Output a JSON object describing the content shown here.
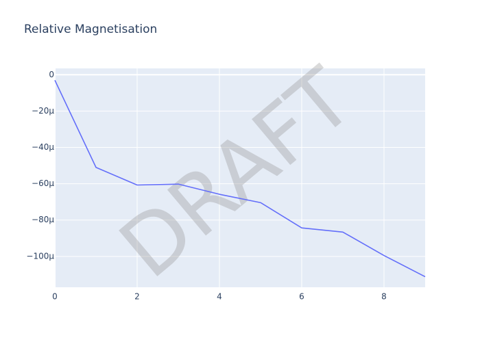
{
  "chart_data": {
    "type": "line",
    "title": "Relative Magnetisation",
    "xlabel": "",
    "ylabel": "",
    "xlim": [
      0,
      9
    ],
    "ylim": [
      -0.000117,
      3.5e-06
    ],
    "x_ticks": [
      0,
      2,
      4,
      6,
      8
    ],
    "x_tick_labels": [
      "0",
      "2",
      "4",
      "6",
      "8"
    ],
    "y_ticks": [
      0,
      -2e-05,
      -4e-05,
      -6e-05,
      -8e-05,
      -0.0001
    ],
    "y_tick_labels": [
      "0",
      "−20μ",
      "−40μ",
      "−60μ",
      "−80μ",
      "−100μ"
    ],
    "grid": true,
    "legend": "none",
    "series": [
      {
        "x": [
          0,
          1,
          2,
          3,
          4,
          5,
          6,
          7,
          8,
          9
        ],
        "values": [
          -3e-06,
          -5.1e-05,
          -6.07e-05,
          -6.02e-05,
          -6.58e-05,
          -7.04e-05,
          -8.43e-05,
          -8.66e-05,
          -9.95e-05,
          -0.0001112
        ]
      }
    ],
    "colors": {
      "line": "#636efa",
      "plot_bg": "#e5ecf6",
      "grid": "#ffffff",
      "text": "#2a3f5f",
      "watermark": "rgba(150,150,150,0.35)"
    },
    "watermark": "DRAFT"
  }
}
